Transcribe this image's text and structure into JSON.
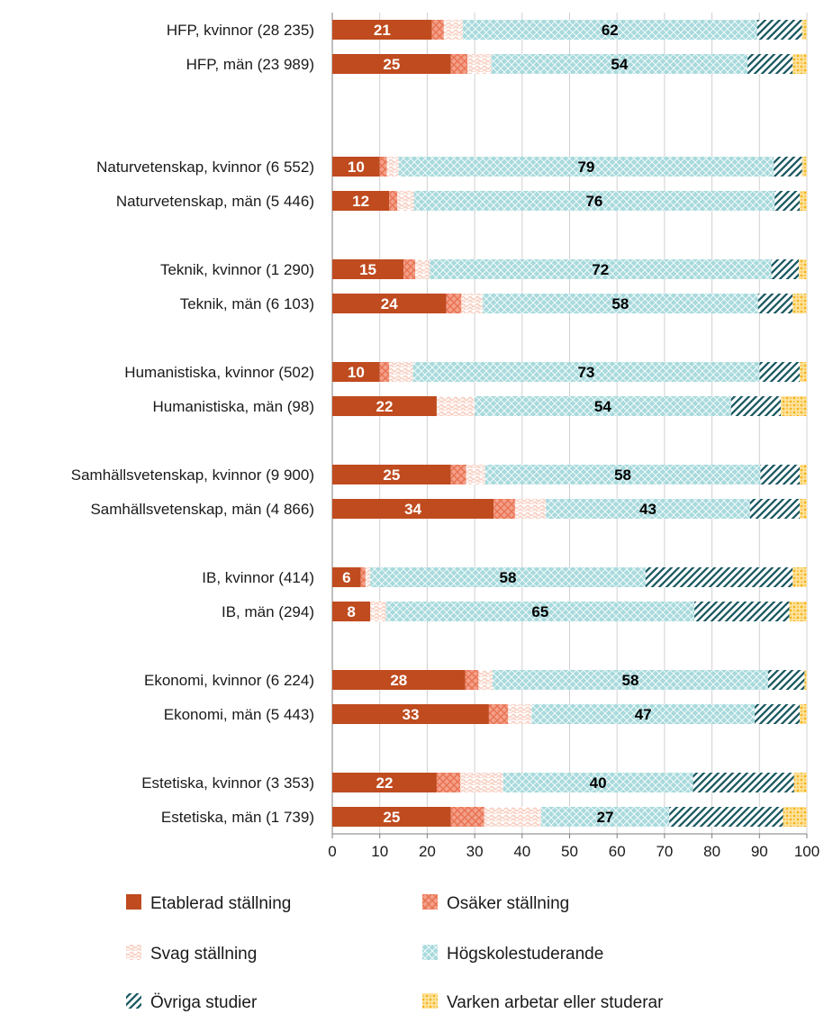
{
  "chart_data": {
    "type": "bar",
    "orientation": "horizontal",
    "stacked": true,
    "xlim": [
      0,
      100
    ],
    "x_ticks": [
      "0",
      "10",
      "20",
      "30",
      "40",
      "50",
      "60",
      "70",
      "80",
      "90",
      "100"
    ],
    "grid": true,
    "legend_position": "bottom",
    "categories": [
      "HFP, kvinnor (28 235)",
      "HFP, män (23 989)",
      "Naturvetenskap, kvinnor (6 552)",
      "Naturvetenskap, män (5 446)",
      "Teknik, kvinnor (1 290)",
      "Teknik, män (6 103)",
      "Humanistiska, kvinnor (502)",
      "Humanistiska, män (98)",
      "Samhällsvetenskap, kvinnor (9 900)",
      "Samhällsvetenskap, män (4 866)",
      "IB, kvinnor (414)",
      "IB, män (294)",
      "Ekonomi, kvinnor (6 224)",
      "Ekonomi, män (5 443)",
      "Estetiska, kvinnor (3 353)",
      "Estetiska, män (1 739)"
    ],
    "series": [
      {
        "name": "Etablerad ställning",
        "color": "#bf4b1f",
        "pattern": "solid",
        "label_color": "#ffffff",
        "values": [
          21,
          25,
          10,
          12,
          15,
          24,
          10,
          22,
          25,
          34,
          6,
          8,
          28,
          33,
          22,
          25
        ],
        "labels": [
          "21",
          "25",
          "10",
          "12",
          "15",
          "24",
          "10",
          "22",
          "25",
          "34",
          "6",
          "8",
          "28",
          "33",
          "22",
          "25"
        ]
      },
      {
        "name": "Osäker ställning",
        "color": "#e8714f",
        "pattern": "diagonal-cross",
        "values": [
          2.5,
          3.5,
          1.5,
          1.7,
          2.5,
          3.2,
          2,
          0,
          3.2,
          4.5,
          1,
          0,
          2.8,
          4,
          5,
          7
        ]
      },
      {
        "name": "Svag ställning",
        "color": "#f8d2c5",
        "pattern": "wave",
        "values": [
          4,
          5,
          2.5,
          3.5,
          3,
          4.5,
          5,
          8,
          4,
          6.5,
          1,
          3.3,
          3,
          5,
          9,
          12
        ]
      },
      {
        "name": "Högskolestuderande",
        "color": "#a8dadd",
        "pattern": "lattice",
        "label_color": "#000000",
        "values": [
          62,
          54,
          79,
          76,
          72,
          58,
          73,
          54,
          58,
          43,
          58,
          65,
          58,
          47,
          40,
          27
        ],
        "labels": [
          "62",
          "54",
          "79",
          "76",
          "72",
          "58",
          "73",
          "54",
          "58",
          "43",
          "58",
          "65",
          "58",
          "47",
          "40",
          "27"
        ]
      },
      {
        "name": "Övriga studier",
        "color": "#1c5963",
        "pattern": "stripes",
        "values": [
          9.5,
          9.5,
          6,
          5.3,
          5.8,
          7.3,
          8.5,
          10.5,
          8.3,
          10.5,
          31,
          20,
          7.7,
          9.5,
          21.3,
          24
        ]
      },
      {
        "name": "Varken arbetar eller studerar",
        "color": "#f5b51c",
        "pattern": "dots",
        "values": [
          1,
          3,
          1,
          1.5,
          1.7,
          3,
          1.5,
          5.5,
          1.5,
          1.5,
          3,
          3.7,
          0.5,
          1.5,
          2.7,
          5
        ]
      }
    ],
    "group_sizes": [
      2,
      2,
      2,
      2,
      2,
      2,
      2,
      2
    ]
  }
}
